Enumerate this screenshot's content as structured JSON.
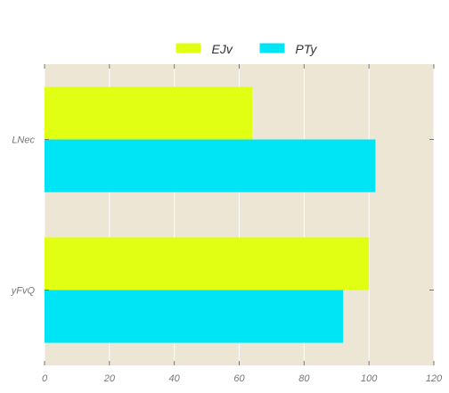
{
  "chart_data": {
    "type": "bar",
    "orientation": "horizontal",
    "categories": [
      "yFvQ",
      "LNec"
    ],
    "series": [
      {
        "name": "EJv",
        "color": "#e1ff12",
        "values": [
          100,
          64
        ]
      },
      {
        "name": "PTy",
        "color": "#00e5f5",
        "values": [
          92,
          102
        ]
      }
    ],
    "xlim": [
      0,
      120
    ],
    "xticks": [
      0,
      20,
      40,
      60,
      80,
      100,
      120
    ],
    "grid": true,
    "legend_position": "top-center",
    "plot_background": "#ede6d5",
    "grid_color": "#ffffff",
    "tick_color": "#777777"
  }
}
